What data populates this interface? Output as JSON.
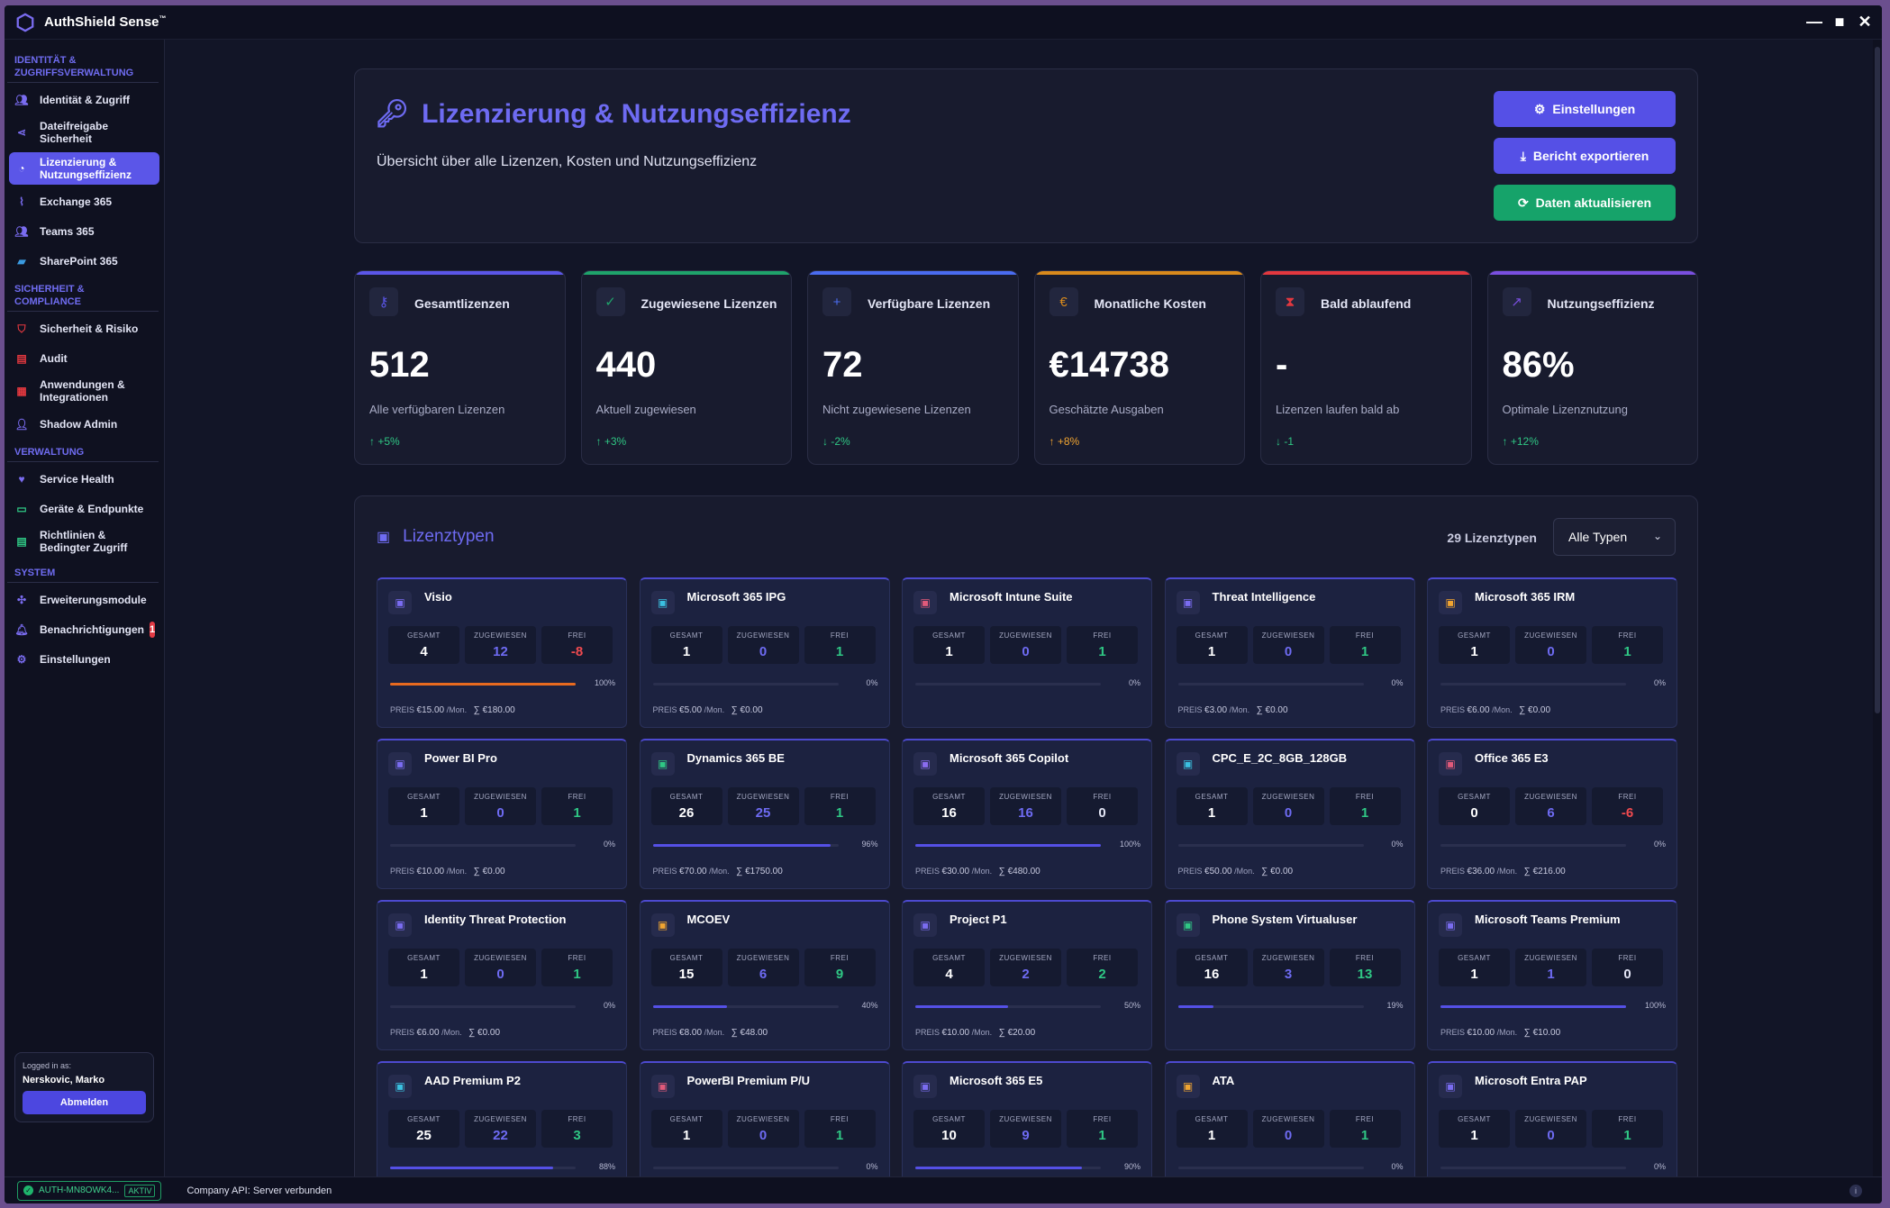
{
  "app": {
    "name": "AuthShield Sense",
    "tm": "™"
  },
  "sidebar": {
    "sections": [
      {
        "title": "Identität & Zugriffsverwaltung",
        "items": [
          {
            "label": "Identität & Zugriff",
            "icon": "users-icon"
          },
          {
            "label": "Dateifreigabe Sicherheit",
            "icon": "share-icon"
          },
          {
            "label": "Lizenzierung & Nutzungseffizienz",
            "icon": "pie-chart-icon",
            "active": true
          },
          {
            "label": "Exchange 365",
            "icon": "chart-line-icon"
          },
          {
            "label": "Teams 365",
            "icon": "team-icon"
          },
          {
            "label": "SharePoint 365",
            "icon": "folder-icon"
          }
        ]
      },
      {
        "title": "Sicherheit & Compliance",
        "items": [
          {
            "label": "Sicherheit & Risiko",
            "icon": "shield-icon"
          },
          {
            "label": "Audit",
            "icon": "clipboard-icon"
          },
          {
            "label": "Anwendungen & Integrationen",
            "icon": "grid-icon"
          },
          {
            "label": "Shadow Admin",
            "icon": "user-secret-icon"
          }
        ]
      },
      {
        "title": "Verwaltung",
        "items": [
          {
            "label": "Service Health",
            "icon": "heartbeat-icon"
          },
          {
            "label": "Geräte & Endpunkte",
            "icon": "desktop-icon"
          },
          {
            "label": "Richtlinien & Bedingter Zugriff",
            "icon": "document-icon"
          }
        ]
      },
      {
        "title": "System",
        "items": [
          {
            "label": "Erweiterungsmodule",
            "icon": "puzzle-icon"
          },
          {
            "label": "Benachrichtigungen",
            "icon": "bell-icon",
            "badge": "1"
          },
          {
            "label": "Einstellungen",
            "icon": "gear-icon"
          }
        ]
      }
    ],
    "login": {
      "label": "Logged in as:",
      "name": "Nerskovic, Marko",
      "logout": "Abmelden"
    }
  },
  "header": {
    "title": "Lizenzierung & Nutzungseffizienz",
    "subtitle": "Übersicht über alle Lizenzen, Kosten und Nutzungseffizienz",
    "buttons": {
      "settings": "Einstellungen",
      "export": "Bericht exportieren",
      "refresh": "Daten aktualisieren"
    }
  },
  "stats": [
    {
      "title": "Gesamtlizenzen",
      "value": "512",
      "desc": "Alle verfügbaren Lizenzen",
      "trend": "+5%",
      "dir": "up",
      "color": "#5b56e8",
      "icon": "key-icon",
      "trend_color": "#2fc784"
    },
    {
      "title": "Zugewiesene Lizenzen",
      "value": "440",
      "desc": "Aktuell zugewiesen",
      "trend": "+3%",
      "dir": "up",
      "color": "#1fa36b",
      "icon": "user-check-icon",
      "trend_color": "#2fc784"
    },
    {
      "title": "Verfügbare Lizenzen",
      "value": "72",
      "desc": "Nicht zugewiesene Lizenzen",
      "trend": "-2%",
      "dir": "down",
      "color": "#4a6cf0",
      "icon": "user-plus-icon",
      "trend_color": "#2fc784"
    },
    {
      "title": "Monatliche Kosten",
      "value": "€14738",
      "desc": "Geschätzte Ausgaben",
      "trend": "+8%",
      "dir": "up",
      "color": "#d98a1c",
      "icon": "euro-icon",
      "trend_color": "#f0a431"
    },
    {
      "title": "Bald ablaufend",
      "value": "-",
      "desc": "Lizenzen laufen bald ab",
      "trend": "-1",
      "dir": "down",
      "color": "#e3383f",
      "icon": "hourglass-icon",
      "trend_color": "#2fc784"
    },
    {
      "title": "Nutzungseffizienz",
      "value": "86%",
      "desc": "Optimale Lizenznutzung",
      "trend": "+12%",
      "dir": "up",
      "color": "#7a4fe0",
      "icon": "chart-up-icon",
      "trend_color": "#2fc784"
    }
  ],
  "licenses": {
    "title": "Lizenztypen",
    "count": "29 Lizenztypen",
    "filter": "Alle Typen",
    "labels": {
      "total": "GESAMT",
      "assigned": "ZUGEWIESEN",
      "free": "FREI",
      "price": "PREIS",
      "per_month": "/Mon."
    },
    "cards": [
      {
        "name": "Visio",
        "total": "4",
        "assigned": "12",
        "free": "-8",
        "pct": "100%",
        "fill": 1.0,
        "bar_color": "#e86a1f",
        "price": "€15.00",
        "sum": "∑ €180.00",
        "icon_color": "#7a6cf0",
        "free_color": "#f04a4f"
      },
      {
        "name": "Microsoft 365 IPG",
        "total": "1",
        "assigned": "0",
        "free": "1",
        "pct": "0%",
        "fill": 0,
        "bar_color": "#5550e6",
        "price": "€5.00",
        "sum": "∑ €0.00",
        "icon_color": "#3ac0e0",
        "free_color": "#2fc784"
      },
      {
        "name": "Microsoft Intune Suite",
        "total": "1",
        "assigned": "0",
        "free": "1",
        "pct": "0%",
        "fill": 0,
        "bar_color": "#5550e6",
        "price": "",
        "sum": "",
        "icon_color": "#e05a7a",
        "free_color": "#2fc784"
      },
      {
        "name": "Threat Intelligence",
        "total": "1",
        "assigned": "0",
        "free": "1",
        "pct": "0%",
        "fill": 0,
        "bar_color": "#5550e6",
        "price": "€3.00",
        "sum": "∑ €0.00",
        "icon_color": "#7a6cf0",
        "free_color": "#2fc784"
      },
      {
        "name": "Microsoft 365 IRM",
        "total": "1",
        "assigned": "0",
        "free": "1",
        "pct": "0%",
        "fill": 0,
        "bar_color": "#5550e6",
        "price": "€6.00",
        "sum": "∑ €0.00",
        "icon_color": "#f0a431",
        "free_color": "#2fc784"
      },
      {
        "name": "Power BI Pro",
        "total": "1",
        "assigned": "0",
        "free": "1",
        "pct": "0%",
        "fill": 0,
        "bar_color": "#5550e6",
        "price": "€10.00",
        "sum": "∑ €0.00",
        "icon_color": "#7a6cf0",
        "free_color": "#2fc784"
      },
      {
        "name": "Dynamics 365 BE",
        "total": "26",
        "assigned": "25",
        "free": "1",
        "pct": "96%",
        "fill": 0.96,
        "bar_color": "#5550e6",
        "price": "€70.00",
        "sum": "∑ €1750.00",
        "icon_color": "#2fc784",
        "free_color": "#2fc784"
      },
      {
        "name": "Microsoft 365 Copilot",
        "total": "16",
        "assigned": "16",
        "free": "0",
        "pct": "100%",
        "fill": 1.0,
        "bar_color": "#5550e6",
        "price": "€30.00",
        "sum": "∑ €480.00",
        "icon_color": "#8a6cf0",
        "free_color": "#e3e5f5"
      },
      {
        "name": "CPC_E_2C_8GB_128GB",
        "total": "1",
        "assigned": "0",
        "free": "1",
        "pct": "0%",
        "fill": 0,
        "bar_color": "#5550e6",
        "price": "€50.00",
        "sum": "∑ €0.00",
        "icon_color": "#3ac0e0",
        "free_color": "#2fc784"
      },
      {
        "name": "Office 365 E3",
        "total": "0",
        "assigned": "6",
        "free": "-6",
        "pct": "0%",
        "fill": 0,
        "bar_color": "#5550e6",
        "price": "€36.00",
        "sum": "∑ €216.00",
        "icon_color": "#e05a7a",
        "free_color": "#f04a4f"
      },
      {
        "name": "Identity Threat Protection",
        "total": "1",
        "assigned": "0",
        "free": "1",
        "pct": "0%",
        "fill": 0,
        "bar_color": "#5550e6",
        "price": "€6.00",
        "sum": "∑ €0.00",
        "icon_color": "#7a6cf0",
        "free_color": "#2fc784"
      },
      {
        "name": "MCOEV",
        "total": "15",
        "assigned": "6",
        "free": "9",
        "pct": "40%",
        "fill": 0.4,
        "bar_color": "#5550e6",
        "price": "€8.00",
        "sum": "∑ €48.00",
        "icon_color": "#f0a431",
        "free_color": "#2fc784"
      },
      {
        "name": "Project P1",
        "total": "4",
        "assigned": "2",
        "free": "2",
        "pct": "50%",
        "fill": 0.5,
        "bar_color": "#5550e6",
        "price": "€10.00",
        "sum": "∑ €20.00",
        "icon_color": "#7a6cf0",
        "free_color": "#2fc784"
      },
      {
        "name": "Phone System Virtualuser",
        "total": "16",
        "assigned": "3",
        "free": "13",
        "pct": "19%",
        "fill": 0.19,
        "bar_color": "#5550e6",
        "price": "",
        "sum": "",
        "icon_color": "#2fc784",
        "free_color": "#2fc784"
      },
      {
        "name": "Microsoft Teams Premium",
        "total": "1",
        "assigned": "1",
        "free": "0",
        "pct": "100%",
        "fill": 1.0,
        "bar_color": "#5550e6",
        "price": "€10.00",
        "sum": "∑ €10.00",
        "icon_color": "#7a6cf0",
        "free_color": "#e3e5f5"
      },
      {
        "name": "AAD Premium P2",
        "total": "25",
        "assigned": "22",
        "free": "3",
        "pct": "88%",
        "fill": 0.88,
        "bar_color": "#5550e6",
        "price": "",
        "sum": "",
        "icon_color": "#3ac0e0",
        "free_color": "#2fc784"
      },
      {
        "name": "PowerBI Premium P/U",
        "total": "1",
        "assigned": "0",
        "free": "1",
        "pct": "0%",
        "fill": 0,
        "bar_color": "#5550e6",
        "price": "",
        "sum": "",
        "icon_color": "#e05a7a",
        "free_color": "#2fc784"
      },
      {
        "name": "Microsoft 365 E5",
        "total": "10",
        "assigned": "9",
        "free": "1",
        "pct": "90%",
        "fill": 0.9,
        "bar_color": "#5550e6",
        "price": "",
        "sum": "",
        "icon_color": "#7a6cf0",
        "free_color": "#2fc784"
      },
      {
        "name": "ATA",
        "total": "1",
        "assigned": "0",
        "free": "1",
        "pct": "0%",
        "fill": 0,
        "bar_color": "#5550e6",
        "price": "",
        "sum": "",
        "icon_color": "#f0a431",
        "free_color": "#2fc784"
      },
      {
        "name": "Microsoft Entra PAP",
        "total": "1",
        "assigned": "0",
        "free": "1",
        "pct": "0%",
        "fill": 0,
        "bar_color": "#5550e6",
        "price": "",
        "sum": "",
        "icon_color": "#7a6cf0",
        "free_color": "#2fc784"
      }
    ]
  },
  "statusbar": {
    "session": "AUTH-MN8OWK4...",
    "status": "AKTIV",
    "api": "Company API: Server verbunden"
  }
}
